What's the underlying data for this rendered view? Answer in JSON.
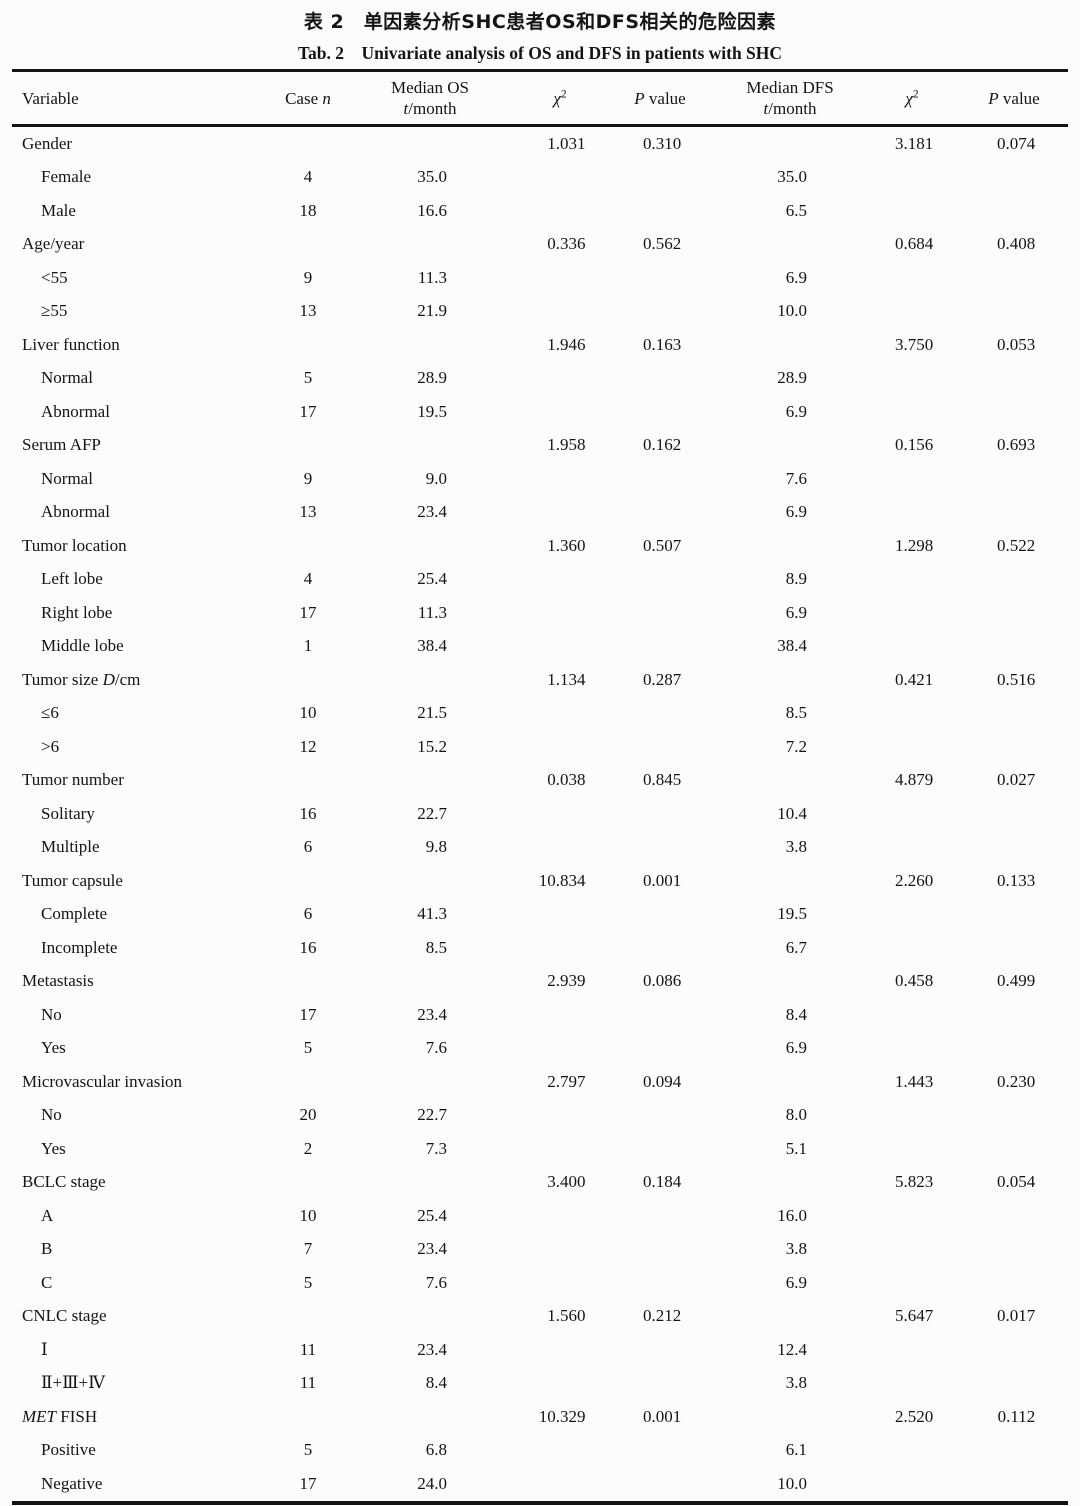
{
  "page": {
    "title_zh": "表 2　单因素分析SHC患者OS和DFS相关的危险因素",
    "title_en": "Tab. 2　Univariate analysis of OS and DFS in patients with SHC"
  },
  "table": {
    "columns": [
      {
        "key": "label",
        "label": "Variable"
      },
      {
        "key": "case",
        "label": "Case *n*"
      },
      {
        "key": "os",
        "label": "Median OS\n*t*/month"
      },
      {
        "key": "chi2_os",
        "label": "*χ*^2^"
      },
      {
        "key": "p_os",
        "label": "*P* value"
      },
      {
        "key": "dfs",
        "label": "Median DFS\n*t*/month"
      },
      {
        "key": "chi2_dfs",
        "label": "*χ*^2^"
      },
      {
        "key": "p_dfs",
        "label": "*P* value"
      }
    ],
    "rows": [
      {
        "label": "Gender",
        "indent": false,
        "case": "",
        "os": "",
        "chi2_os": "1.031",
        "p_os": "0.310",
        "dfs": "",
        "chi2_dfs": "3.181",
        "p_dfs": "0.074"
      },
      {
        "label": "Female",
        "indent": true,
        "case": "4",
        "os": "35.0",
        "chi2_os": "",
        "p_os": "",
        "dfs": "35.0",
        "chi2_dfs": "",
        "p_dfs": ""
      },
      {
        "label": "Male",
        "indent": true,
        "case": "18",
        "os": "16.6",
        "chi2_os": "",
        "p_os": "",
        "dfs": "6.5",
        "chi2_dfs": "",
        "p_dfs": ""
      },
      {
        "label": "Age/year",
        "indent": false,
        "case": "",
        "os": "",
        "chi2_os": "0.336",
        "p_os": "0.562",
        "dfs": "",
        "chi2_dfs": "0.684",
        "p_dfs": "0.408"
      },
      {
        "label": "<55",
        "indent": true,
        "case": "9",
        "os": "11.3",
        "chi2_os": "",
        "p_os": "",
        "dfs": "6.9",
        "chi2_dfs": "",
        "p_dfs": ""
      },
      {
        "label": "≥55",
        "indent": true,
        "case": "13",
        "os": "21.9",
        "chi2_os": "",
        "p_os": "",
        "dfs": "10.0",
        "chi2_dfs": "",
        "p_dfs": ""
      },
      {
        "label": "Liver function",
        "indent": false,
        "case": "",
        "os": "",
        "chi2_os": "1.946",
        "p_os": "0.163",
        "dfs": "",
        "chi2_dfs": "3.750",
        "p_dfs": "0.053"
      },
      {
        "label": "Normal",
        "indent": true,
        "case": "5",
        "os": "28.9",
        "chi2_os": "",
        "p_os": "",
        "dfs": "28.9",
        "chi2_dfs": "",
        "p_dfs": ""
      },
      {
        "label": "Abnormal",
        "indent": true,
        "case": "17",
        "os": "19.5",
        "chi2_os": "",
        "p_os": "",
        "dfs": "6.9",
        "chi2_dfs": "",
        "p_dfs": ""
      },
      {
        "label": "Serum AFP",
        "indent": false,
        "case": "",
        "os": "",
        "chi2_os": "1.958",
        "p_os": "0.162",
        "dfs": "",
        "chi2_dfs": "0.156",
        "p_dfs": "0.693"
      },
      {
        "label": "Normal",
        "indent": true,
        "case": "9",
        "os": "9.0",
        "chi2_os": "",
        "p_os": "",
        "dfs": "7.6",
        "chi2_dfs": "",
        "p_dfs": ""
      },
      {
        "label": "Abnormal",
        "indent": true,
        "case": "13",
        "os": "23.4",
        "chi2_os": "",
        "p_os": "",
        "dfs": "6.9",
        "chi2_dfs": "",
        "p_dfs": ""
      },
      {
        "label": "Tumor location",
        "indent": false,
        "case": "",
        "os": "",
        "chi2_os": "1.360",
        "p_os": "0.507",
        "dfs": "",
        "chi2_dfs": "1.298",
        "p_dfs": "0.522"
      },
      {
        "label": "Left lobe",
        "indent": true,
        "case": "4",
        "os": "25.4",
        "chi2_os": "",
        "p_os": "",
        "dfs": "8.9",
        "chi2_dfs": "",
        "p_dfs": ""
      },
      {
        "label": "Right lobe",
        "indent": true,
        "case": "17",
        "os": "11.3",
        "chi2_os": "",
        "p_os": "",
        "dfs": "6.9",
        "chi2_dfs": "",
        "p_dfs": ""
      },
      {
        "label": "Middle lobe",
        "indent": true,
        "case": "1",
        "os": "38.4",
        "chi2_os": "",
        "p_os": "",
        "dfs": "38.4",
        "chi2_dfs": "",
        "p_dfs": ""
      },
      {
        "label": "Tumor size *D*/cm",
        "indent": false,
        "case": "",
        "os": "",
        "chi2_os": "1.134",
        "p_os": "0.287",
        "dfs": "",
        "chi2_dfs": "0.421",
        "p_dfs": "0.516"
      },
      {
        "label": "≤6",
        "indent": true,
        "case": "10",
        "os": "21.5",
        "chi2_os": "",
        "p_os": "",
        "dfs": "8.5",
        "chi2_dfs": "",
        "p_dfs": ""
      },
      {
        "label": ">6",
        "indent": true,
        "case": "12",
        "os": "15.2",
        "chi2_os": "",
        "p_os": "",
        "dfs": "7.2",
        "chi2_dfs": "",
        "p_dfs": ""
      },
      {
        "label": "Tumor number",
        "indent": false,
        "case": "",
        "os": "",
        "chi2_os": "0.038",
        "p_os": "0.845",
        "dfs": "",
        "chi2_dfs": "4.879",
        "p_dfs": "0.027"
      },
      {
        "label": "Solitary",
        "indent": true,
        "case": "16",
        "os": "22.7",
        "chi2_os": "",
        "p_os": "",
        "dfs": "10.4",
        "chi2_dfs": "",
        "p_dfs": ""
      },
      {
        "label": "Multiple",
        "indent": true,
        "case": "6",
        "os": "9.8",
        "chi2_os": "",
        "p_os": "",
        "dfs": "3.8",
        "chi2_dfs": "",
        "p_dfs": ""
      },
      {
        "label": "Tumor capsule",
        "indent": false,
        "case": "",
        "os": "",
        "chi2_os": "10.834",
        "p_os": "0.001",
        "dfs": "",
        "chi2_dfs": "2.260",
        "p_dfs": "0.133"
      },
      {
        "label": "Complete",
        "indent": true,
        "case": "6",
        "os": "41.3",
        "chi2_os": "",
        "p_os": "",
        "dfs": "19.5",
        "chi2_dfs": "",
        "p_dfs": ""
      },
      {
        "label": "Incomplete",
        "indent": true,
        "case": "16",
        "os": "8.5",
        "chi2_os": "",
        "p_os": "",
        "dfs": "6.7",
        "chi2_dfs": "",
        "p_dfs": ""
      },
      {
        "label": "Metastasis",
        "indent": false,
        "case": "",
        "os": "",
        "chi2_os": "2.939",
        "p_os": "0.086",
        "dfs": "",
        "chi2_dfs": "0.458",
        "p_dfs": "0.499"
      },
      {
        "label": "No",
        "indent": true,
        "case": "17",
        "os": "23.4",
        "chi2_os": "",
        "p_os": "",
        "dfs": "8.4",
        "chi2_dfs": "",
        "p_dfs": ""
      },
      {
        "label": "Yes",
        "indent": true,
        "case": "5",
        "os": "7.6",
        "chi2_os": "",
        "p_os": "",
        "dfs": "6.9",
        "chi2_dfs": "",
        "p_dfs": ""
      },
      {
        "label": "Microvascular invasion",
        "indent": false,
        "case": "",
        "os": "",
        "chi2_os": "2.797",
        "p_os": "0.094",
        "dfs": "",
        "chi2_dfs": "1.443",
        "p_dfs": "0.230"
      },
      {
        "label": "No",
        "indent": true,
        "case": "20",
        "os": "22.7",
        "chi2_os": "",
        "p_os": "",
        "dfs": "8.0",
        "chi2_dfs": "",
        "p_dfs": ""
      },
      {
        "label": "Yes",
        "indent": true,
        "case": "2",
        "os": "7.3",
        "chi2_os": "",
        "p_os": "",
        "dfs": "5.1",
        "chi2_dfs": "",
        "p_dfs": ""
      },
      {
        "label": "BCLC stage",
        "indent": false,
        "case": "",
        "os": "",
        "chi2_os": "3.400",
        "p_os": "0.184",
        "dfs": "",
        "chi2_dfs": "5.823",
        "p_dfs": "0.054"
      },
      {
        "label": "A",
        "indent": true,
        "case": "10",
        "os": "25.4",
        "chi2_os": "",
        "p_os": "",
        "dfs": "16.0",
        "chi2_dfs": "",
        "p_dfs": ""
      },
      {
        "label": "B",
        "indent": true,
        "case": "7",
        "os": "23.4",
        "chi2_os": "",
        "p_os": "",
        "dfs": "3.8",
        "chi2_dfs": "",
        "p_dfs": ""
      },
      {
        "label": "C",
        "indent": true,
        "case": "5",
        "os": "7.6",
        "chi2_os": "",
        "p_os": "",
        "dfs": "6.9",
        "chi2_dfs": "",
        "p_dfs": ""
      },
      {
        "label": "CNLC stage",
        "indent": false,
        "case": "",
        "os": "",
        "chi2_os": "1.560",
        "p_os": "0.212",
        "dfs": "",
        "chi2_dfs": "5.647",
        "p_dfs": "0.017"
      },
      {
        "label": "Ⅰ",
        "indent": true,
        "case": "11",
        "os": "23.4",
        "chi2_os": "",
        "p_os": "",
        "dfs": "12.4",
        "chi2_dfs": "",
        "p_dfs": ""
      },
      {
        "label": "Ⅱ+Ⅲ+Ⅳ",
        "indent": true,
        "case": "11",
        "os": "8.4",
        "chi2_os": "",
        "p_os": "",
        "dfs": "3.8",
        "chi2_dfs": "",
        "p_dfs": ""
      },
      {
        "label": "*MET* FISH",
        "indent": false,
        "case": "",
        "os": "",
        "chi2_os": "10.329",
        "p_os": "0.001",
        "dfs": "",
        "chi2_dfs": "2.520",
        "p_dfs": "0.112"
      },
      {
        "label": "Positive",
        "indent": true,
        "case": "5",
        "os": "6.8",
        "chi2_os": "",
        "p_os": "",
        "dfs": "6.1",
        "chi2_dfs": "",
        "p_dfs": ""
      },
      {
        "label": "Negative",
        "indent": true,
        "case": "17",
        "os": "24.0",
        "chi2_os": "",
        "p_os": "",
        "dfs": "10.0",
        "chi2_dfs": "",
        "p_dfs": ""
      }
    ]
  }
}
